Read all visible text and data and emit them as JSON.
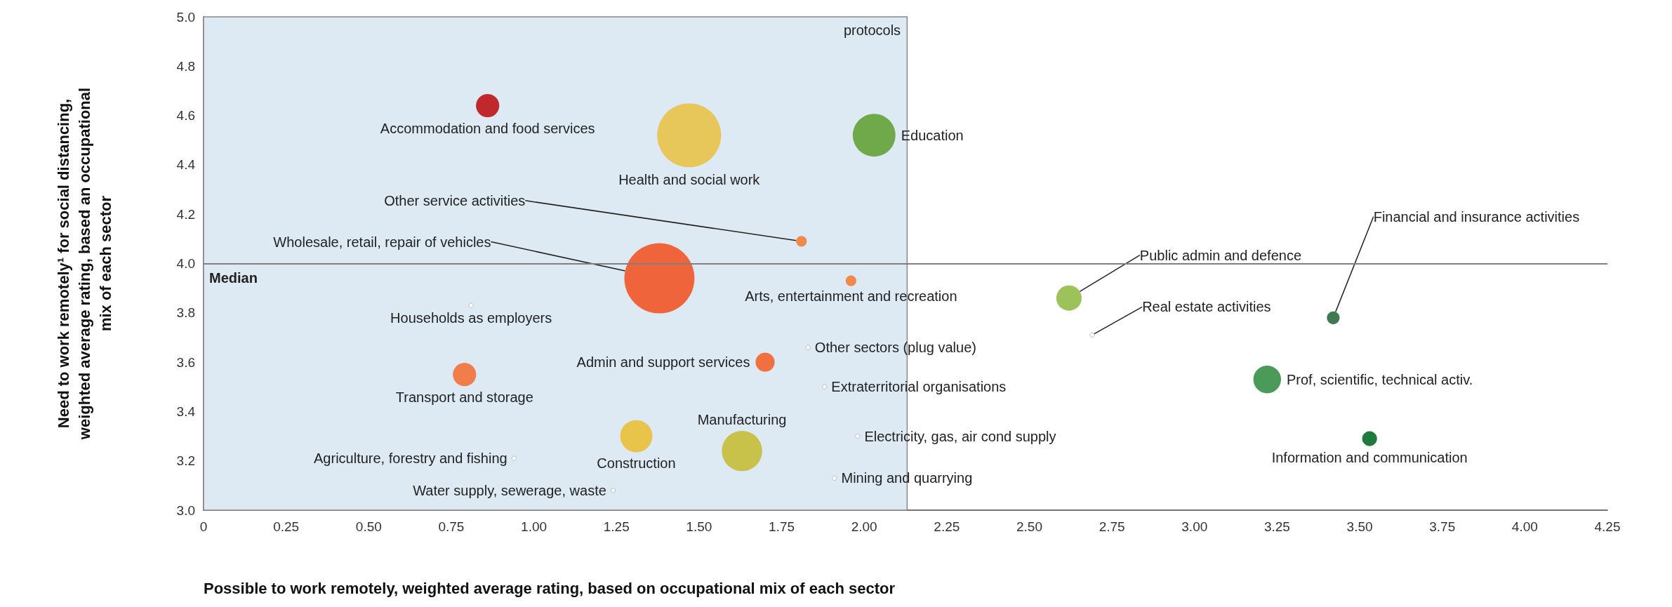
{
  "chart_data": {
    "type": "bubble",
    "xlabel": "Possible to work remotely, weighted average rating, based on occupational mix of each sector",
    "ylabel": "Need to work remotely¹ for social distancing, weighted average rating, based an occupational mix of each sector",
    "xlim": [
      0,
      4.25
    ],
    "xticks": [
      0,
      0.25,
      {
        "value": 0.5,
        "label": "0.50"
      },
      0.75,
      {
        "value": 1,
        "label": "1.00"
      },
      1.25,
      {
        "value": 1.5,
        "label": "1.50"
      },
      1.75,
      {
        "value": 2,
        "label": "2.00"
      },
      2.25,
      {
        "value": 2.5,
        "label": "2.50"
      },
      2.75,
      {
        "value": 3,
        "label": "3.00"
      },
      3.25,
      {
        "value": 3.5,
        "label": "3.50"
      },
      3.75,
      {
        "value": 4,
        "label": "4.00"
      },
      4.25
    ],
    "ylim": [
      3,
      5
    ],
    "yticks": [
      {
        "value": 3,
        "label": "3.0"
      },
      3.2,
      3.4,
      3.6,
      3.8,
      {
        "value": 4,
        "label": "4.0"
      },
      4.2,
      4.4,
      4.6,
      4.8,
      {
        "value": 5,
        "label": "5.0"
      }
    ],
    "grid": false,
    "ref_lines": [
      {
        "axis": "y",
        "value": 4,
        "label": "Median",
        "color": "#808080"
      }
    ],
    "bands": [
      {
        "axis": "x",
        "from": 0,
        "to": 2.13,
        "label": "protocols",
        "color": "#dde9f3"
      }
    ],
    "series": [
      {
        "name": "Accommodation and food services",
        "color": "#c0282d",
        "x": [
          0.86
        ],
        "values": [
          4.64
        ],
        "sizes": [
          0.11
        ]
      },
      {
        "name": "Health and social work",
        "color": "#e8c75a",
        "x": [
          1.47
        ],
        "values": [
          4.52
        ],
        "sizes": [
          0.83
        ]
      },
      {
        "name": "Education",
        "color": "#70a94a",
        "x": [
          2.03
        ],
        "values": [
          4.52
        ],
        "sizes": [
          0.37
        ]
      },
      {
        "name": "Other service activities",
        "color": "#f08a4b",
        "x": [
          1.81
        ],
        "values": [
          4.09
        ],
        "sizes": [
          0.023
        ]
      },
      {
        "name": "Wholesale, retail, repair of vehicles",
        "color": "#f0643c",
        "x": [
          1.38
        ],
        "values": [
          3.94
        ],
        "sizes": [
          1
        ]
      },
      {
        "name": "Arts, entertainment and recreation",
        "color": "#f08a4b",
        "x": [
          1.96
        ],
        "values": [
          3.93
        ],
        "sizes": [
          0.023
        ]
      },
      {
        "name": "Households as employers",
        "color": "#ffffff",
        "x": [
          0.81
        ],
        "values": [
          3.83
        ],
        "sizes": [
          0.004
        ]
      },
      {
        "name": "Other sectors (plug value)",
        "color": "#ffffff",
        "x": [
          1.83
        ],
        "values": [
          3.66
        ],
        "sizes": [
          0.004
        ]
      },
      {
        "name": "Admin and support services",
        "color": "#f07040",
        "x": [
          1.7
        ],
        "values": [
          3.6
        ],
        "sizes": [
          0.074
        ]
      },
      {
        "name": "Extraterritorial organisations",
        "color": "#ffffff",
        "x": [
          1.88
        ],
        "values": [
          3.5
        ],
        "sizes": [
          0.004
        ]
      },
      {
        "name": "Transport and storage",
        "color": "#f07d4a",
        "x": [
          0.79
        ],
        "values": [
          3.55
        ],
        "sizes": [
          0.11
        ]
      },
      {
        "name": "Construction",
        "color": "#e8c44a",
        "x": [
          1.31
        ],
        "values": [
          3.3
        ],
        "sizes": [
          0.21
        ]
      },
      {
        "name": "Manufacturing",
        "color": "#c8c24a",
        "x": [
          1.63
        ],
        "values": [
          3.24
        ],
        "sizes": [
          0.33
        ]
      },
      {
        "name": "Agriculture, forestry and fishing",
        "color": "#ffffff",
        "x": [
          0.94
        ],
        "values": [
          3.21
        ],
        "sizes": [
          0.004
        ]
      },
      {
        "name": "Water supply, sewerage, waste",
        "color": "#ffffff",
        "x": [
          1.24
        ],
        "values": [
          3.08
        ],
        "sizes": [
          0.004
        ]
      },
      {
        "name": "Electricity, gas, air cond supply",
        "color": "#ffffff",
        "x": [
          1.98
        ],
        "values": [
          3.3
        ],
        "sizes": [
          0.004
        ]
      },
      {
        "name": "Mining and quarrying",
        "color": "#ffffff",
        "x": [
          1.91
        ],
        "values": [
          3.13
        ],
        "sizes": [
          0.004
        ]
      },
      {
        "name": "Public admin and defence",
        "color": "#9cc35a",
        "x": [
          2.62
        ],
        "values": [
          3.86
        ],
        "sizes": [
          0.13
        ]
      },
      {
        "name": "Real estate activities",
        "color": "#ffffff",
        "x": [
          2.69
        ],
        "values": [
          3.71
        ],
        "sizes": [
          0.004
        ]
      },
      {
        "name": "Financial and insurance activities",
        "color": "#3d7a4f",
        "x": [
          3.42
        ],
        "values": [
          3.78
        ],
        "sizes": [
          0.033
        ]
      },
      {
        "name": "Prof, scientific, technical activ.",
        "color": "#4a9a5a",
        "x": [
          3.22
        ],
        "values": [
          3.53
        ],
        "sizes": [
          0.155
        ]
      },
      {
        "name": "Information and communication",
        "color": "#1f7a3e",
        "x": [
          3.53
        ],
        "values": [
          3.29
        ],
        "sizes": [
          0.045
        ]
      }
    ]
  }
}
